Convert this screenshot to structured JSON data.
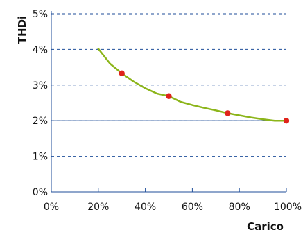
{
  "chart_data": {
    "type": "line",
    "title": "",
    "xlabel": "Carico",
    "ylabel": "THDi",
    "xlim": [
      0,
      100
    ],
    "ylim": [
      0,
      5
    ],
    "x_ticks": [
      "0%",
      "20%",
      "40%",
      "60%",
      "80%",
      "100%"
    ],
    "y_ticks": [
      "0%",
      "1%",
      "2%",
      "3%",
      "4%",
      "5%"
    ],
    "grid": "horizontal dashed",
    "series": [
      {
        "type": "line",
        "color": "#8CB51A",
        "x": [
          20,
          25,
          30,
          35,
          40,
          45,
          50,
          55,
          60,
          65,
          70,
          75,
          80,
          85,
          90,
          95,
          100
        ],
        "y": [
          4.02,
          3.6,
          3.33,
          3.1,
          2.91,
          2.76,
          2.69,
          2.53,
          2.44,
          2.36,
          2.29,
          2.21,
          2.15,
          2.09,
          2.04,
          2.0,
          2.0
        ]
      },
      {
        "type": "scatter",
        "color": "#E0231B",
        "x": [
          30,
          50,
          75,
          100
        ],
        "y": [
          3.33,
          2.69,
          2.21,
          2.0
        ]
      }
    ],
    "reference_line": {
      "y": 2.0,
      "color": "#1F4E9A"
    },
    "colors": {
      "axis": "#1F4E9A",
      "grid": "#1F4E9A",
      "text": "#111111"
    }
  }
}
